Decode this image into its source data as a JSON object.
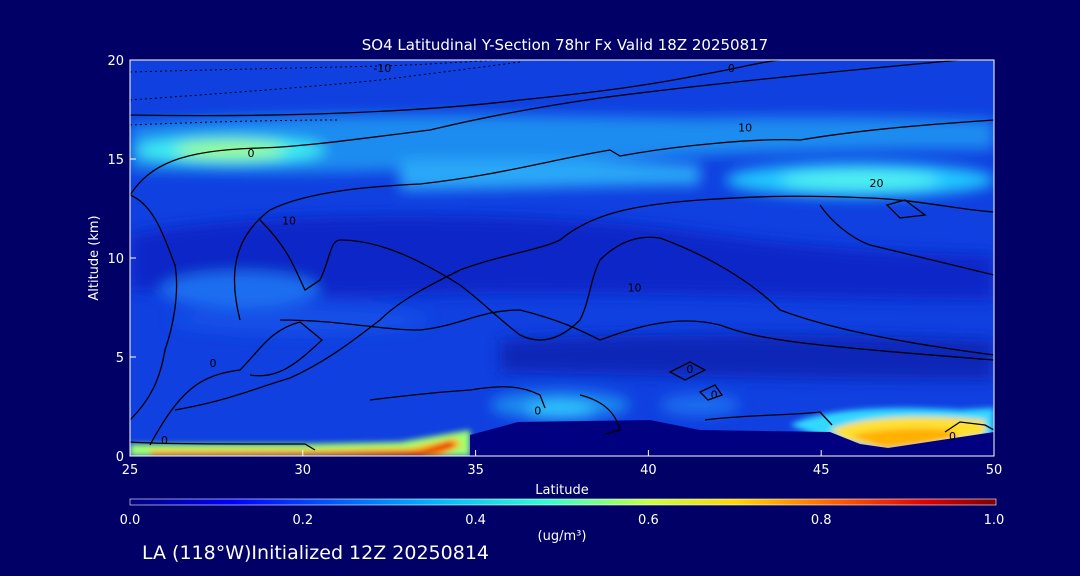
{
  "chart_data": {
    "type": "heatmap",
    "title": "SO4 Latitudinal Y-Section 78hr  Fx Valid 18Z 20250817",
    "xlabel": "Latitude",
    "ylabel": "Altitude (km)",
    "xlim": [
      25,
      50
    ],
    "ylim": [
      0,
      20
    ],
    "x_ticks": [
      "25",
      "30",
      "35",
      "40",
      "45",
      "50"
    ],
    "y_ticks": [
      "0",
      "5",
      "10",
      "15",
      "20"
    ],
    "colorbar": {
      "label": "(ug/m³)",
      "range": [
        0.0,
        1.0
      ],
      "ticks": [
        "0.0",
        "0.2",
        "0.4",
        "0.6",
        "0.8",
        "1.0"
      ]
    },
    "contour_labels": [
      {
        "text": "-10",
        "lat": 32.3,
        "alt": 19.6
      },
      {
        "text": "0",
        "lat": 42.4,
        "alt": 19.6
      },
      {
        "text": "0",
        "lat": 28.5,
        "alt": 15.3
      },
      {
        "text": "10",
        "lat": 42.8,
        "alt": 16.6
      },
      {
        "text": "20",
        "lat": 46.6,
        "alt": 13.8
      },
      {
        "text": "10",
        "lat": 29.6,
        "alt": 11.9
      },
      {
        "text": "10",
        "lat": 39.6,
        "alt": 8.5
      },
      {
        "text": "0",
        "lat": 27.4,
        "alt": 4.7
      },
      {
        "text": "0",
        "lat": 26.0,
        "alt": 0.8
      },
      {
        "text": "0",
        "lat": 36.8,
        "alt": 2.3
      },
      {
        "text": "0",
        "lat": 41.2,
        "alt": 4.4
      },
      {
        "text": "0",
        "lat": 41.9,
        "alt": 3.1
      },
      {
        "text": "0",
        "lat": 48.8,
        "alt": 1.0
      }
    ]
  },
  "footer": {
    "text": "LA (118°W)Initialized 12Z 20250814"
  }
}
